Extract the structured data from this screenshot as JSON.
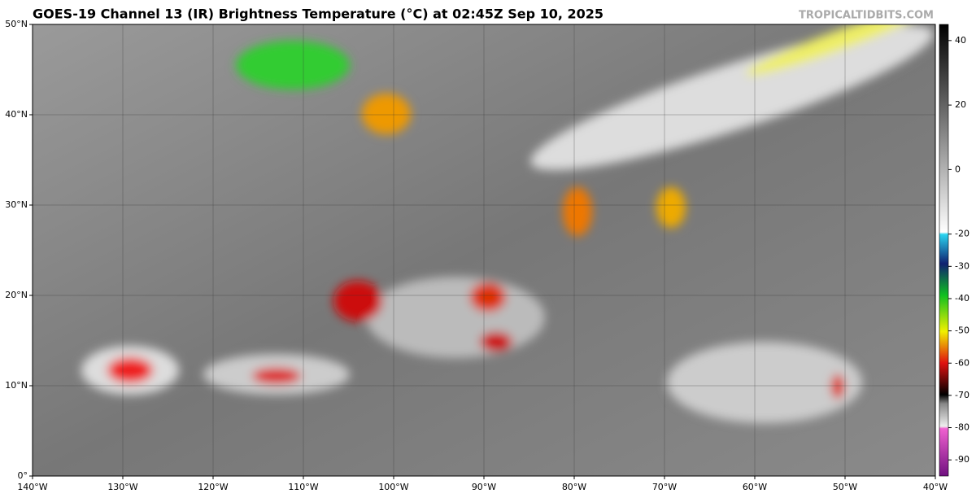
{
  "title": "GOES-19 Channel 13 (IR) Brightness Temperature (°C) at 02:45Z Sep 10, 2025",
  "credit": "TROPICALTIDBITS.COM",
  "map": {
    "lonlim": [
      -140,
      -40
    ],
    "latlim": [
      0,
      50
    ],
    "lonticks": [
      {
        "value": -140,
        "label": "140°W"
      },
      {
        "value": -130,
        "label": "130°W"
      },
      {
        "value": -120,
        "label": "120°W"
      },
      {
        "value": -110,
        "label": "110°W"
      },
      {
        "value": -100,
        "label": "100°W"
      },
      {
        "value": -90,
        "label": "90°W"
      },
      {
        "value": -80,
        "label": "80°W"
      },
      {
        "value": -70,
        "label": "70°W"
      },
      {
        "value": -60,
        "label": "60°W"
      },
      {
        "value": -50,
        "label": "50°W"
      },
      {
        "value": -40,
        "label": "40°W"
      }
    ],
    "latticks": [
      {
        "value": 0,
        "label": "0°"
      },
      {
        "value": 10,
        "label": "10°N"
      },
      {
        "value": 20,
        "label": "20°N"
      },
      {
        "value": 30,
        "label": "30°N"
      },
      {
        "value": 40,
        "label": "40°N"
      },
      {
        "value": 50,
        "label": "50°N"
      }
    ]
  },
  "colorbar": {
    "range": [
      -95,
      45
    ],
    "ticks": [
      40,
      20,
      0,
      -20,
      -30,
      -40,
      -50,
      -60,
      -70,
      -80,
      -90
    ]
  }
}
